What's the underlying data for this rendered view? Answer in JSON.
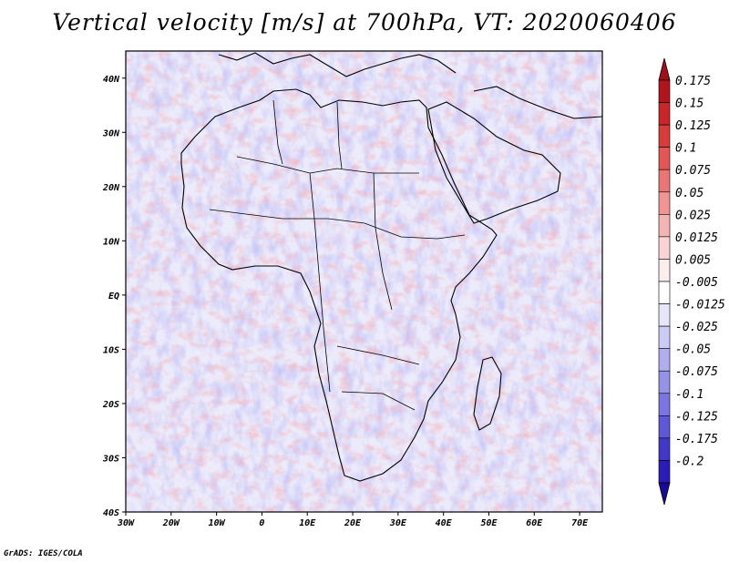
{
  "title": "Vertical velocity [m/s] at 700hPa, VT: 2020060406",
  "credit": "GrADS: IGES/COLA",
  "map": {
    "lon_range": [
      -30,
      75
    ],
    "lat_range": [
      -40,
      45
    ],
    "lon_ticks": [
      {
        "value": -30,
        "label": "30W"
      },
      {
        "value": -20,
        "label": "20W"
      },
      {
        "value": -10,
        "label": "10W"
      },
      {
        "value": 0,
        "label": "0"
      },
      {
        "value": 10,
        "label": "10E"
      },
      {
        "value": 20,
        "label": "20E"
      },
      {
        "value": 30,
        "label": "30E"
      },
      {
        "value": 40,
        "label": "40E"
      },
      {
        "value": 50,
        "label": "50E"
      },
      {
        "value": 60,
        "label": "60E"
      },
      {
        "value": 70,
        "label": "70E"
      }
    ],
    "lat_ticks": [
      {
        "value": 40,
        "label": "40N"
      },
      {
        "value": 30,
        "label": "30N"
      },
      {
        "value": 20,
        "label": "20N"
      },
      {
        "value": 10,
        "label": "10N"
      },
      {
        "value": 0,
        "label": "EQ"
      },
      {
        "value": -10,
        "label": "10S"
      },
      {
        "value": -20,
        "label": "20S"
      },
      {
        "value": -30,
        "label": "30S"
      },
      {
        "value": -40,
        "label": "40S"
      }
    ]
  },
  "colorbar": {
    "labels": [
      "0.175",
      "0.15",
      "0.125",
      "0.1",
      "0.075",
      "0.05",
      "0.025",
      "0.0125",
      "0.005",
      "-0.005",
      "-0.0125",
      "-0.025",
      "-0.05",
      "-0.075",
      "-0.1",
      "-0.125",
      "-0.175",
      "-0.2"
    ],
    "colors": [
      "#b0141c",
      "#c8262b",
      "#d73c3c",
      "#e25656",
      "#ea7575",
      "#f09494",
      "#f5b4b4",
      "#fad4d4",
      "#fdeeee",
      "#ffffff",
      "#e6e6fa",
      "#cccbf5",
      "#b0aeef",
      "#9592e8",
      "#7a75e0",
      "#5f58d6",
      "#4238c8",
      "#2a1cb5",
      "#180aa0"
    ],
    "top_color": "#a0101a",
    "bottom_color": "#1a0a9a"
  }
}
